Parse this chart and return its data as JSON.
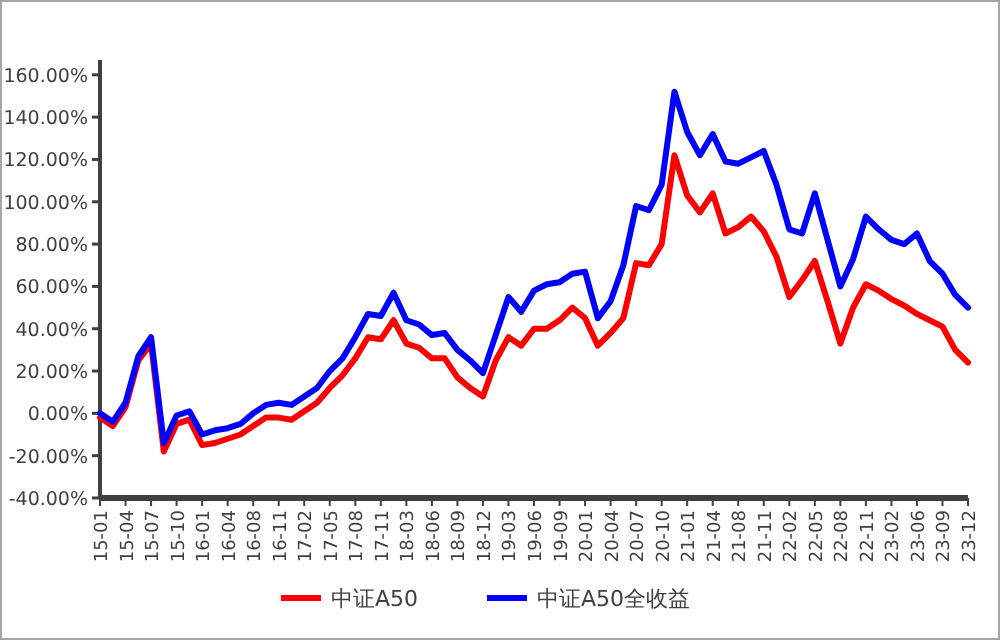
{
  "chart_data": {
    "type": "line",
    "legend": "bottom",
    "grid": false,
    "marker": "none",
    "line_style": "solid",
    "ylim": [
      -40,
      167
    ],
    "yticks": [
      {
        "value": -40,
        "label": "-40.00%"
      },
      {
        "value": -20,
        "label": "-20.00%"
      },
      {
        "value": 0,
        "label": "0.00%"
      },
      {
        "value": 20,
        "label": "20.00%"
      },
      {
        "value": 40,
        "label": "40.00%"
      },
      {
        "value": 60,
        "label": "60.00%"
      },
      {
        "value": 80,
        "label": "80.00%"
      },
      {
        "value": 100,
        "label": "100.00%"
      },
      {
        "value": 120,
        "label": "120.00%"
      },
      {
        "value": 140,
        "label": "140.00%"
      },
      {
        "value": 160,
        "label": "160.00%"
      }
    ],
    "categories": [
      "15-01",
      null,
      "15-04",
      null,
      "15-07",
      null,
      "15-10",
      null,
      "16-01",
      null,
      "16-04",
      null,
      "16-08",
      null,
      "16-11",
      null,
      "17-02",
      null,
      "17-05",
      null,
      "17-08",
      null,
      "17-11",
      null,
      "18-03",
      null,
      "18-06",
      null,
      "18-09",
      null,
      "18-12",
      null,
      "19-03",
      null,
      "19-06",
      null,
      "19-09",
      null,
      "20-01",
      null,
      "20-04",
      null,
      "20-07",
      null,
      "20-10",
      null,
      "21-01",
      null,
      "21-04",
      null,
      "21-08",
      null,
      "21-11",
      null,
      "22-02",
      null,
      "22-05",
      null,
      "22-08",
      null,
      "22-11",
      null,
      "23-02",
      null,
      "23-06",
      null,
      "23-09",
      null,
      "23-12"
    ],
    "series": [
      {
        "name": "中证A50",
        "color": "#ff0000",
        "values": [
          -2,
          -6,
          3,
          25,
          33,
          -18,
          -5,
          -3,
          -15,
          -14,
          -12,
          -10,
          -6,
          -2,
          -2,
          -3,
          1,
          5,
          12,
          18,
          26,
          36,
          35,
          44,
          33,
          31,
          26,
          26,
          17,
          12,
          8,
          25,
          36,
          32,
          40,
          40,
          44,
          50,
          45,
          32,
          38,
          45,
          71,
          70,
          80,
          122,
          103,
          95,
          104,
          85,
          88,
          93,
          86,
          74,
          55,
          63,
          72,
          53,
          33,
          50,
          61,
          58,
          54,
          51,
          47,
          44,
          41,
          30,
          24
        ]
      },
      {
        "name": "中证A50全收益",
        "color": "#0000ff",
        "values": [
          0,
          -4,
          5,
          27,
          36,
          -14,
          -1,
          1,
          -10,
          -8,
          -7,
          -5,
          0,
          4,
          5,
          4,
          8,
          12,
          20,
          26,
          36,
          47,
          46,
          57,
          44,
          42,
          37,
          38,
          30,
          25,
          19,
          37,
          55,
          48,
          58,
          61,
          62,
          66,
          67,
          45,
          53,
          70,
          98,
          96,
          108,
          152,
          133,
          122,
          132,
          119,
          118,
          121,
          124,
          108,
          87,
          85,
          104,
          82,
          60,
          73,
          93,
          87,
          82,
          80,
          85,
          72,
          66,
          56,
          50
        ]
      }
    ]
  }
}
